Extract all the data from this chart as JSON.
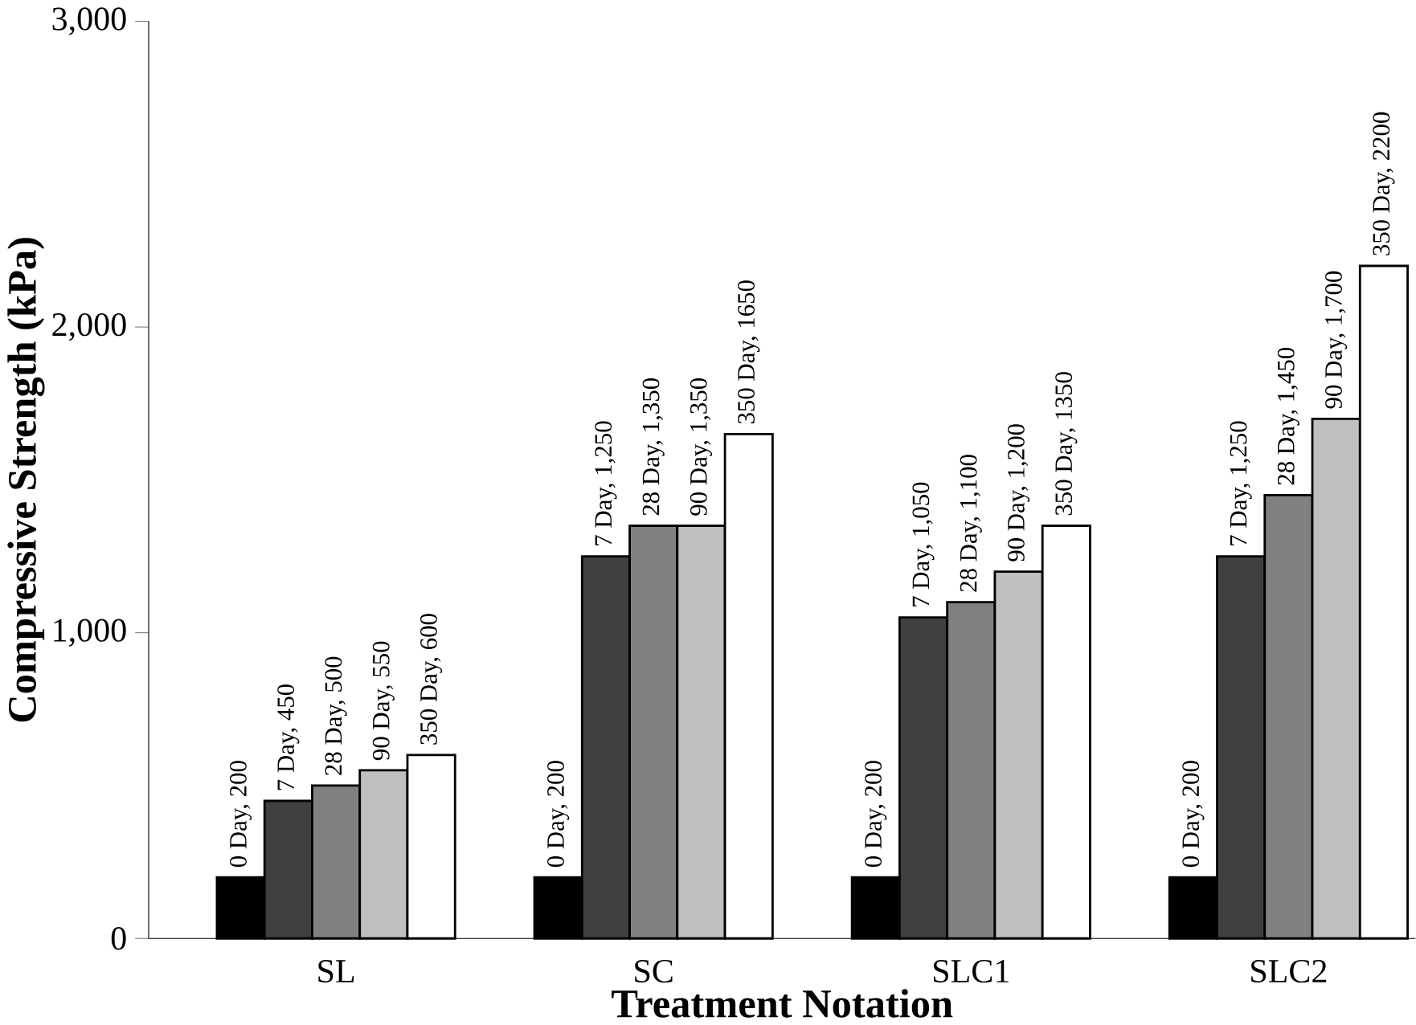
{
  "chart_data": {
    "type": "bar",
    "xlabel": "Treatment Notation",
    "ylabel": "Compressive Strength (kPa)",
    "categories": [
      "SL",
      "SC",
      "SLC1",
      "SLC2"
    ],
    "series": [
      {
        "color": "#000000",
        "values": [
          200,
          200,
          200,
          200
        ],
        "value_labels": [
          "0 Day, 200",
          "0 Day, 200",
          "0 Day, 200",
          "0 Day, 200"
        ]
      },
      {
        "color": "#404040",
        "values": [
          450,
          1250,
          1050,
          1250
        ],
        "value_labels": [
          "7 Day, 450",
          "7 Day, 1,250",
          "7 Day, 1,050",
          "7 Day, 1,250"
        ]
      },
      {
        "color": "#808080",
        "values": [
          500,
          1350,
          1100,
          1450
        ],
        "value_labels": [
          "28 Day, 500",
          "28 Day, 1,350",
          "28 Day, 1,100",
          "28 Day, 1,450"
        ]
      },
      {
        "color": "#bfbfbf",
        "values": [
          550,
          1350,
          1200,
          1700
        ],
        "value_labels": [
          "90 Day, 550",
          "90 Day, 1,350",
          "90 Day, 1,200",
          "90 Day, 1,700"
        ]
      },
      {
        "color": "#ffffff",
        "values": [
          600,
          1650,
          1350,
          2200
        ],
        "value_labels": [
          "350 Day, 600",
          "350 Day, 1650",
          "350 Day, 1350",
          "350 Day, 2200"
        ]
      }
    ],
    "ylim": [
      0,
      3000
    ],
    "yticks": [
      {
        "value": 0,
        "label": "0"
      },
      {
        "value": 1000,
        "label": "1,000"
      },
      {
        "value": 2000,
        "label": "2,000"
      },
      {
        "value": 3000,
        "label": "3,000"
      }
    ],
    "grid": false
  }
}
